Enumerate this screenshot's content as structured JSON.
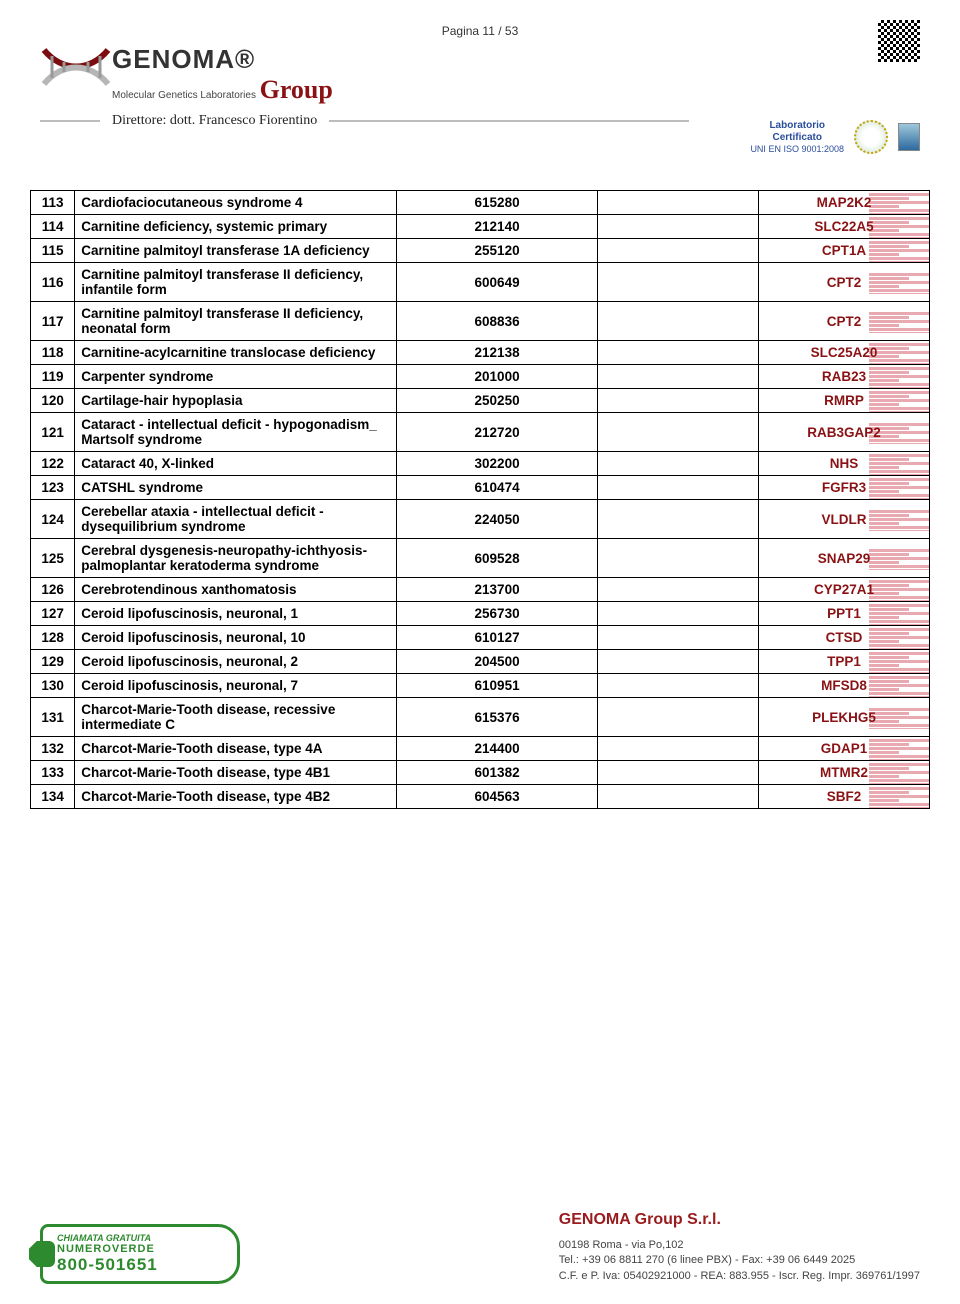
{
  "page_info": "Pagina 11 / 53",
  "header": {
    "brand": "GENOMA",
    "brand_group": "Group",
    "brand_sub": "Molecular Genetics Laboratories",
    "direttore": "Direttore: dott. Francesco Fiorentino",
    "cert_lab": "Laboratorio",
    "cert_cert": "Certificato",
    "cert_uni": "UNI EN ISO 9001:2008"
  },
  "gene_bar_color": "#e6a0a8",
  "gene_text_color": "#8a1214",
  "table": {
    "columns": {
      "idx_w": 44,
      "name_w": 320,
      "code_w": 200,
      "empty_w": 160,
      "gene_w": 170
    },
    "rows": [
      {
        "idx": "113",
        "name": "Cardiofaciocutaneous syndrome 4",
        "code": "615280",
        "gene": "MAP2K2"
      },
      {
        "idx": "114",
        "name": "Carnitine deficiency, systemic primary",
        "code": "212140",
        "gene": "SLC22A5"
      },
      {
        "idx": "115",
        "name": "Carnitine palmitoyl transferase 1A deficiency",
        "code": "255120",
        "gene": "CPT1A"
      },
      {
        "idx": "116",
        "name": "Carnitine palmitoyl transferase II deficiency, infantile form",
        "code": "600649",
        "gene": "CPT2"
      },
      {
        "idx": "117",
        "name": "Carnitine palmitoyl transferase II deficiency, neonatal form",
        "code": "608836",
        "gene": "CPT2"
      },
      {
        "idx": "118",
        "name": "Carnitine-acylcarnitine translocase deficiency",
        "code": "212138",
        "gene": "SLC25A20"
      },
      {
        "idx": "119",
        "name": "Carpenter syndrome",
        "code": "201000",
        "gene": "RAB23"
      },
      {
        "idx": "120",
        "name": "Cartilage-hair hypoplasia",
        "code": "250250",
        "gene": "RMRP"
      },
      {
        "idx": "121",
        "name": "Cataract - intellectual deficit - hypogonadism_ Martsolf syndrome",
        "code": "212720",
        "gene": "RAB3GAP2"
      },
      {
        "idx": "122",
        "name": "Cataract 40, X-linked",
        "code": "302200",
        "gene": "NHS"
      },
      {
        "idx": "123",
        "name": "CATSHL syndrome",
        "code": "610474",
        "gene": "FGFR3"
      },
      {
        "idx": "124",
        "name": "Cerebellar ataxia - intellectual deficit - dysequilibrium syndrome",
        "code": "224050",
        "gene": "VLDLR"
      },
      {
        "idx": "125",
        "name": "Cerebral dysgenesis-neuropathy-ichthyosis-palmoplantar keratoderma syndrome",
        "code": "609528",
        "gene": "SNAP29"
      },
      {
        "idx": "126",
        "name": "Cerebrotendinous xanthomatosis",
        "code": "213700",
        "gene": "CYP27A1"
      },
      {
        "idx": "127",
        "name": "Ceroid lipofuscinosis, neuronal, 1",
        "code": "256730",
        "gene": "PPT1"
      },
      {
        "idx": "128",
        "name": "Ceroid lipofuscinosis, neuronal, 10",
        "code": "610127",
        "gene": "CTSD"
      },
      {
        "idx": "129",
        "name": "Ceroid lipofuscinosis, neuronal, 2",
        "code": "204500",
        "gene": "TPP1"
      },
      {
        "idx": "130",
        "name": "Ceroid lipofuscinosis, neuronal, 7",
        "code": "610951",
        "gene": "MFSD8"
      },
      {
        "idx": "131",
        "name": "Charcot-Marie-Tooth disease, recessive intermediate C",
        "code": "615376",
        "gene": "PLEKHG5"
      },
      {
        "idx": "132",
        "name": "Charcot-Marie-Tooth disease, type 4A",
        "code": "214400",
        "gene": "GDAP1"
      },
      {
        "idx": "133",
        "name": "Charcot-Marie-Tooth disease, type 4B1",
        "code": "601382",
        "gene": "MTMR2"
      },
      {
        "idx": "134",
        "name": "Charcot-Marie-Tooth disease, type 4B2",
        "code": "604563",
        "gene": "SBF2"
      }
    ]
  },
  "footer": {
    "nv_l1": "CHIAMATA GRATUITA",
    "nv_l2": "NUMEROVERDE",
    "nv_l3": "800-501651",
    "company_title": "GENOMA Group S.r.l.",
    "addr": "00198 Roma - via Po,102",
    "tel": "Tel.: +39 06 8811 270 (6 linee PBX) - Fax: +39 06 6449 2025",
    "cf": "C.F. e P. Iva: 05402921000 - REA: 883.955 - Iscr. Reg. Impr. 369761/1997"
  }
}
